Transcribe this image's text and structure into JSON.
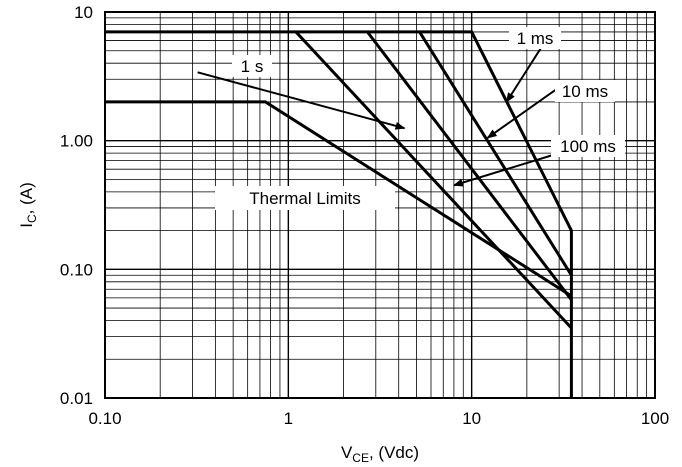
{
  "chart_data": {
    "type": "line",
    "title": "",
    "xscale": "log",
    "yscale": "log",
    "xlim": [
      0.1,
      100
    ],
    "ylim": [
      0.01,
      10
    ],
    "grid": true,
    "xlabel": {
      "main": "V",
      "sub": "CE",
      "rest": ", (Vdc)"
    },
    "ylabel": {
      "main": "I",
      "sub": "C",
      "rest": ", (A)"
    },
    "x_ticks": [
      {
        "value": 0.1,
        "label": "0.10"
      },
      {
        "value": 1,
        "label": "1"
      },
      {
        "value": 10,
        "label": "10"
      },
      {
        "value": 100,
        "label": "100"
      }
    ],
    "y_ticks": [
      {
        "value": 10,
        "label": "10"
      },
      {
        "value": 1,
        "label": "1.00"
      },
      {
        "value": 0.1,
        "label": "0.10"
      },
      {
        "value": 0.01,
        "label": "0.01"
      }
    ],
    "series": [
      {
        "name": "1 ms",
        "points": [
          [
            0.1,
            7
          ],
          [
            10,
            7
          ],
          [
            35,
            0.2
          ],
          [
            35,
            0.01
          ]
        ]
      },
      {
        "name": "10 ms",
        "points": [
          [
            5.2,
            7
          ],
          [
            35,
            0.09
          ]
        ]
      },
      {
        "name": "100 ms",
        "points": [
          [
            2.7,
            7
          ],
          [
            35,
            0.058
          ]
        ]
      },
      {
        "name": "1 s",
        "points": [
          [
            1.1,
            7
          ],
          [
            35,
            0.035
          ]
        ]
      },
      {
        "name": "Thermal Limits",
        "points": [
          [
            0.1,
            2
          ],
          [
            0.75,
            2
          ],
          [
            35,
            0.062
          ]
        ]
      }
    ],
    "annotations": [
      {
        "text": "1 ms",
        "from": [
          28,
          7.5
        ],
        "to": [
          15.5,
          2.0
        ]
      },
      {
        "text": "10 ms",
        "from": [
          30,
          2.6
        ],
        "to": [
          12.2,
          1.05
        ]
      },
      {
        "text": "100 ms",
        "from": [
          30,
          0.8
        ],
        "to": [
          8.0,
          0.45
        ]
      },
      {
        "text": "1 s",
        "from": [
          0.32,
          3.4
        ],
        "to": [
          4.3,
          1.25
        ]
      },
      {
        "text": "Thermal Limits"
      }
    ]
  }
}
